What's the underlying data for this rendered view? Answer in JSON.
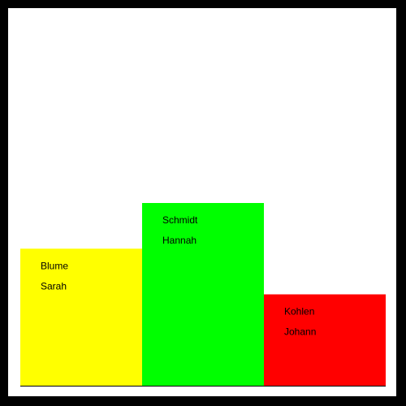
{
  "chart_data": {
    "type": "bar",
    "categories": [
      "Blume Sarah",
      "Schmidt Hannah",
      "Kohlen Johann"
    ],
    "bars": [
      {
        "last_name": "Blume",
        "first_name": "Sarah",
        "value": 3,
        "color": "#ffff00"
      },
      {
        "last_name": "Schmidt",
        "first_name": "Hannah",
        "value": 4,
        "color": "#00ff00"
      },
      {
        "last_name": "Kohlen",
        "first_name": "Johann",
        "value": 2,
        "color": "#ff0000"
      }
    ],
    "ylim": [
      0,
      8
    ],
    "grid": false,
    "legend": "none",
    "title": "",
    "xlabel": "",
    "ylabel": ""
  }
}
